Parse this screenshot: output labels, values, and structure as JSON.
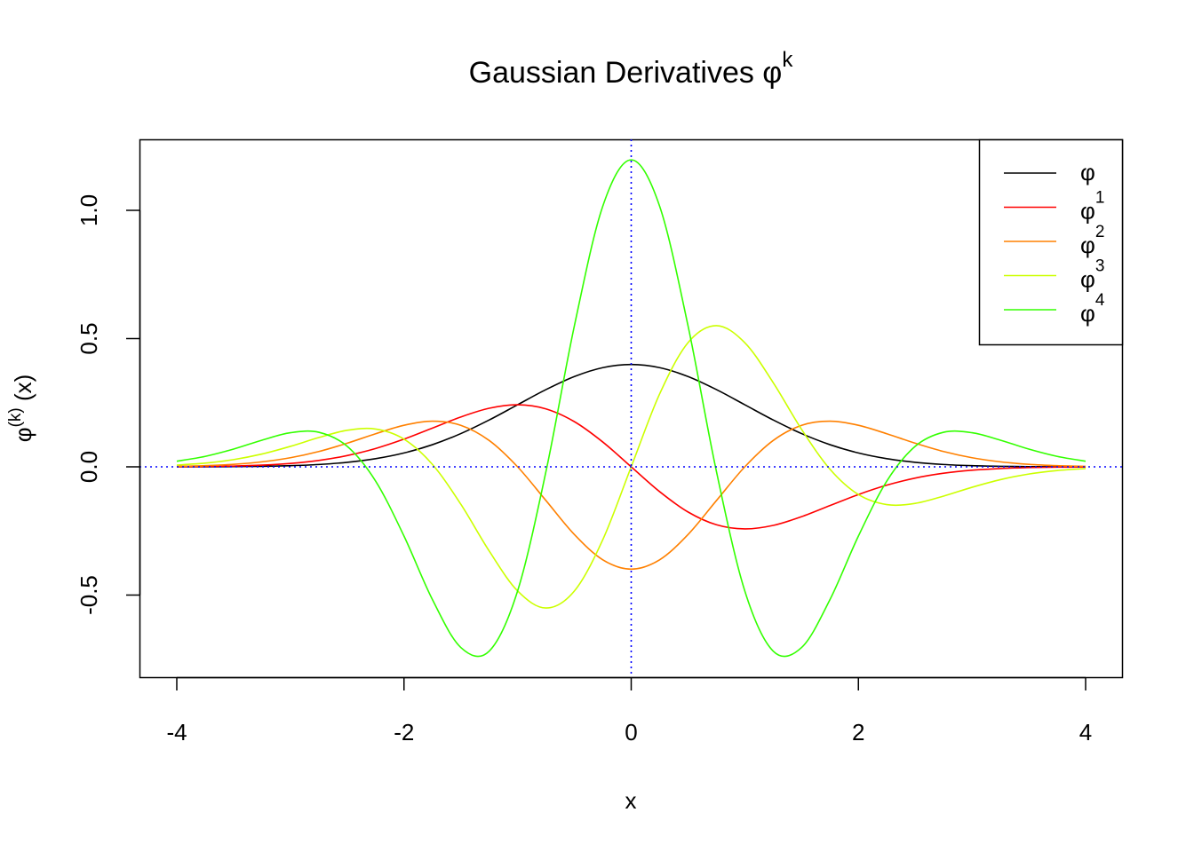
{
  "chart_data": {
    "type": "line",
    "title": "Gaussian Derivatives φ",
    "title_superscript": "k",
    "xlabel": "x",
    "ylabel": "φ",
    "ylabel_superscript": "(k)",
    "ylabel_suffix": " (x)",
    "xlim": [
      -4.3,
      4.3
    ],
    "ylim": [
      -0.82,
      1.28
    ],
    "x_ticks": [
      -4,
      -2,
      0,
      2,
      4
    ],
    "x_tick_labels": [
      "-4",
      "-2",
      "0",
      "2",
      "4"
    ],
    "y_ticks": [
      -0.5,
      0,
      0.5,
      1
    ],
    "y_tick_labels": [
      "-0.5",
      "0.0",
      "0.5",
      "1.0"
    ],
    "grid": false,
    "legend_position": "top-right",
    "reference_lines": {
      "h": 0,
      "v": 0,
      "color": "#0000FF",
      "style": "dotted"
    },
    "x": [
      -4,
      -3.75,
      -3.5,
      -3.25,
      -3,
      -2.75,
      -2.5,
      -2.25,
      -2,
      -1.75,
      -1.5,
      -1.25,
      -1,
      -0.75,
      -0.5,
      -0.25,
      0,
      0.25,
      0.5,
      0.75,
      1,
      1.25,
      1.5,
      1.75,
      2,
      2.25,
      2.5,
      2.75,
      3,
      3.25,
      3.5,
      3.75,
      4
    ],
    "series": [
      {
        "name": "φ",
        "sup": "",
        "color": "#000000",
        "values": [
          0.00013,
          0.00035,
          0.00087,
          0.00203,
          0.00443,
          0.00909,
          0.01753,
          0.03174,
          0.05399,
          0.08628,
          0.12952,
          0.18265,
          0.24197,
          0.30114,
          0.35207,
          0.38667,
          0.39894,
          0.38667,
          0.35207,
          0.30114,
          0.24197,
          0.18265,
          0.12952,
          0.08628,
          0.05399,
          0.03174,
          0.01753,
          0.00909,
          0.00443,
          0.00203,
          0.00087,
          0.00035,
          0.00013
        ]
      },
      {
        "name": "φ",
        "sup": "1",
        "color": "#FF0000",
        "values": [
          0.00054,
          0.00131,
          0.00305,
          0.0066,
          0.01329,
          0.025,
          0.04382,
          0.07142,
          0.10798,
          0.15099,
          0.19428,
          0.22831,
          0.24197,
          0.22586,
          0.17603,
          0.09667,
          0,
          -0.09667,
          -0.17603,
          -0.22586,
          -0.24197,
          -0.22831,
          -0.19428,
          -0.15099,
          -0.10798,
          -0.07142,
          -0.04382,
          -0.025,
          -0.01329,
          -0.0066,
          -0.00305,
          -0.00131,
          -0.00054
        ]
      },
      {
        "name": "φ",
        "sup": "2",
        "color": "#FF8000",
        "values": [
          0.00201,
          0.00457,
          0.00979,
          0.01941,
          0.03544,
          0.05965,
          0.09203,
          0.12894,
          0.16197,
          0.17795,
          0.1619,
          0.10274,
          0,
          -0.13175,
          -0.26405,
          -0.3625,
          -0.39894,
          -0.3625,
          -0.26405,
          -0.13175,
          0,
          0.10274,
          0.1619,
          0.17795,
          0.16197,
          0.12894,
          0.09203,
          0.05965,
          0.03544,
          0.01941,
          0.00979,
          0.00457,
          0.00201
        ]
      },
      {
        "name": "φ",
        "sup": "3",
        "color": "#CCFF00",
        "values": [
          0.00696,
          0.01452,
          0.02817,
          0.04989,
          0.07974,
          0.11405,
          0.14243,
          0.14729,
          0.10798,
          0.00944,
          -0.14571,
          -0.3282,
          -0.48394,
          -0.55052,
          -0.4841,
          -0.28396,
          0,
          0.28396,
          0.4841,
          0.55052,
          0.48394,
          0.3282,
          0.14571,
          -0.00944,
          -0.10798,
          -0.14729,
          -0.14243,
          -0.11405,
          -0.07974,
          -0.04989,
          -0.02817,
          -0.01452,
          -0.00696
        ]
      },
      {
        "name": "φ",
        "sup": "4",
        "color": "#33FF00",
        "values": [
          0.02181,
          0.04073,
          0.06922,
          0.10392,
          0.13296,
          0.13468,
          0.07998,
          -0.05542,
          -0.26995,
          -0.51734,
          -0.70427,
          -0.71847,
          -0.48394,
          -0.01764,
          0.55011,
          1.01652,
          1.19683,
          1.01652,
          0.55011,
          -0.01764,
          -0.48394,
          -0.71847,
          -0.70427,
          -0.51734,
          -0.26995,
          -0.05542,
          0.07998,
          0.13468,
          0.13296,
          0.10392,
          0.06922,
          0.04073,
          0.02181
        ]
      }
    ]
  }
}
